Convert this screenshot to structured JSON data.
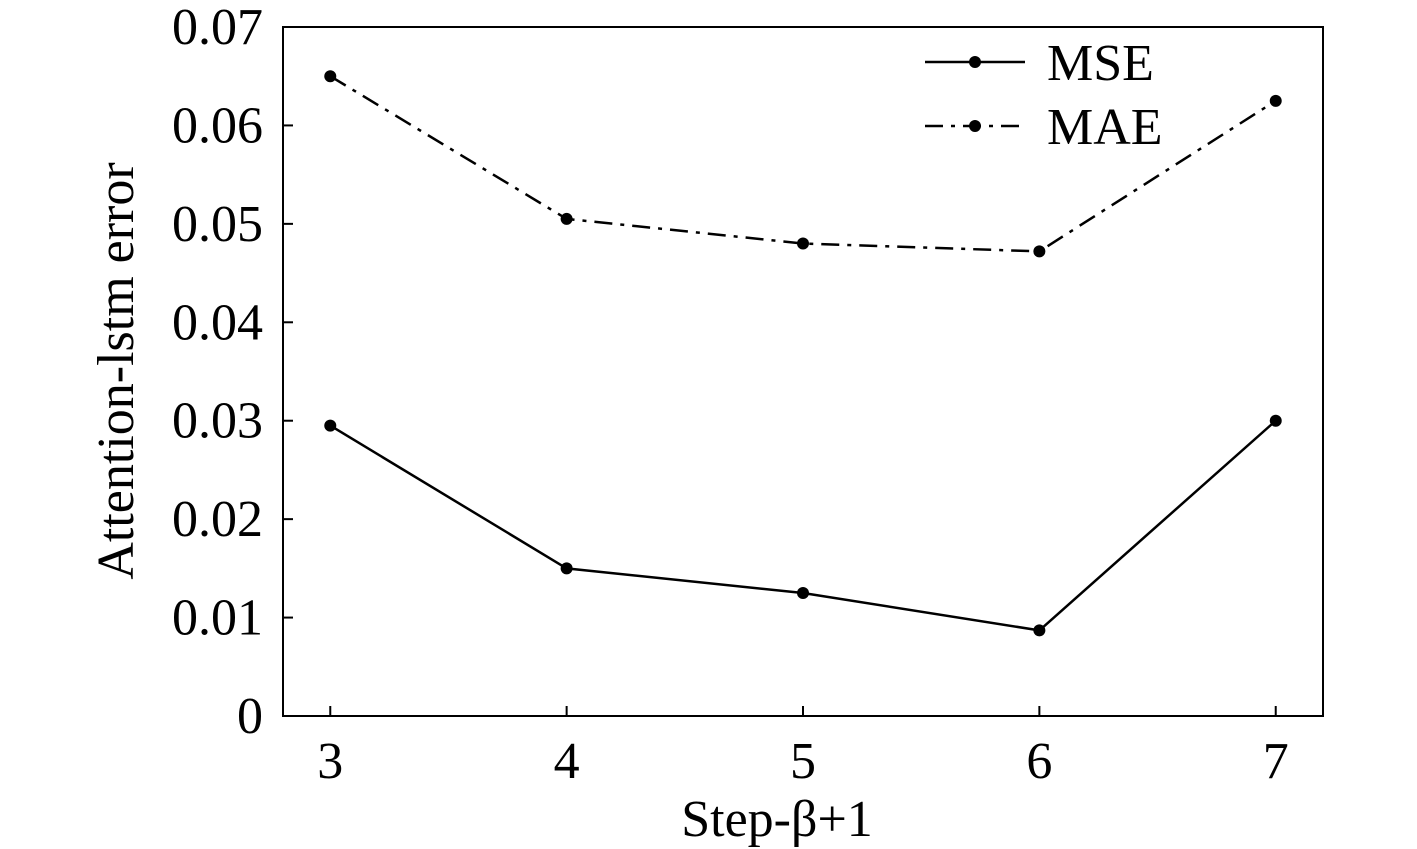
{
  "chart_data": {
    "type": "line",
    "title": "",
    "xlabel": "Step-β+1",
    "ylabel": "Attention-lstm error",
    "x": [
      3,
      4,
      5,
      6,
      7
    ],
    "x_ticks": [
      "3",
      "4",
      "5",
      "6",
      "7"
    ],
    "y_ticks": [
      "0",
      "0.01",
      "0.02",
      "0.03",
      "0.04",
      "0.05",
      "0.06",
      "0.07"
    ],
    "y_tick_values": [
      0,
      0.01,
      0.02,
      0.03,
      0.04,
      0.05,
      0.06,
      0.07
    ],
    "xlim": [
      2.8,
      7.2
    ],
    "ylim": [
      0,
      0.07
    ],
    "grid": false,
    "legend_position": "top-right",
    "series": [
      {
        "name": "MSE",
        "values": [
          0.0295,
          0.015,
          0.0125,
          0.0087,
          0.03
        ],
        "line_style": "solid",
        "color": "#000000"
      },
      {
        "name": "MAE",
        "values": [
          0.065,
          0.0505,
          0.048,
          0.0472,
          0.0625
        ],
        "line_style": "dash-dot",
        "color": "#000000"
      }
    ]
  }
}
